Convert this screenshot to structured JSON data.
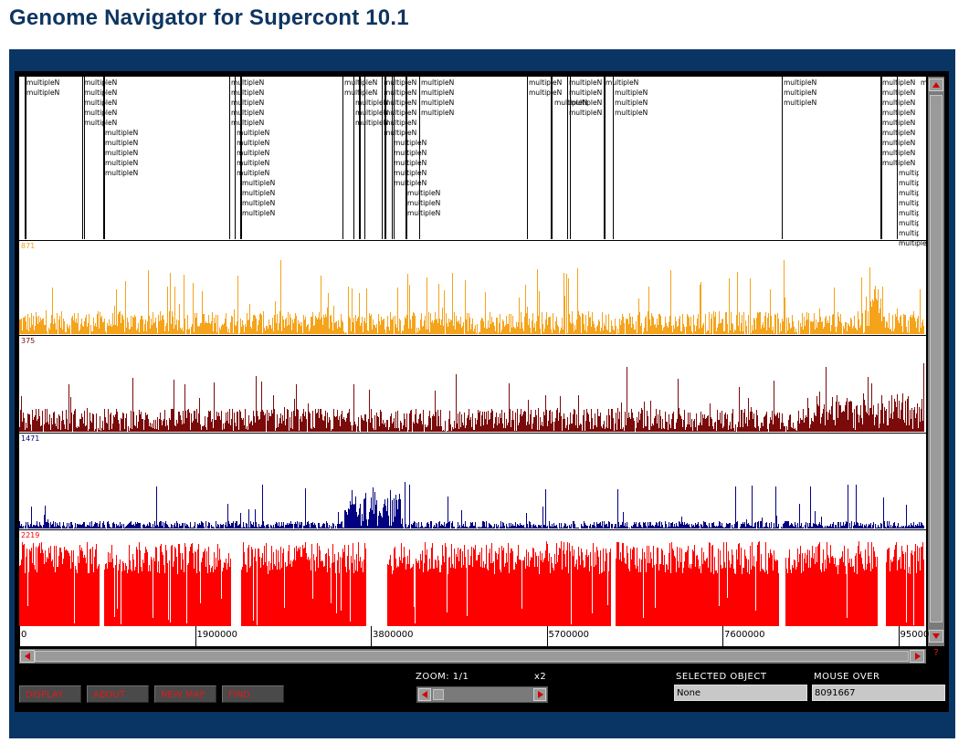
{
  "page": {
    "title": "Genome Navigator for Supercont 10.1"
  },
  "tracks": {
    "feature_label": "multipleN",
    "histograms": [
      {
        "max_label": "871",
        "color": "#f5a31a"
      },
      {
        "max_label": "375",
        "color": "#7b0a0a"
      },
      {
        "max_label": "1471",
        "color": "#000080"
      },
      {
        "max_label": "2219",
        "color": "#ff0000"
      }
    ]
  },
  "ruler": {
    "ticks": [
      "0",
      "1900000",
      "3800000",
      "5700000",
      "7600000",
      "95000"
    ]
  },
  "toolbar": {
    "display_label": "DISPLAY",
    "about_label": "ABOUT",
    "new_map_label": "NEW MAP",
    "find_label": "FIND"
  },
  "zoom": {
    "label": "ZOOM: 1/1",
    "factor_label": "x2"
  },
  "selected_object": {
    "label": "SELECTED OBJECT",
    "value": "None"
  },
  "mouse_over": {
    "label": "MOUSE OVER",
    "value": "8091667"
  },
  "scrollbar": {
    "help_glyph": "?"
  },
  "icons": {
    "scroll_up": "triangle-up-icon",
    "scroll_down": "triangle-down-icon",
    "scroll_left": "triangle-left-icon",
    "scroll_right": "triangle-right-icon"
  },
  "colors": {
    "frame": "#083564",
    "title": "#0e3560",
    "button_text": "#e01a1a"
  }
}
